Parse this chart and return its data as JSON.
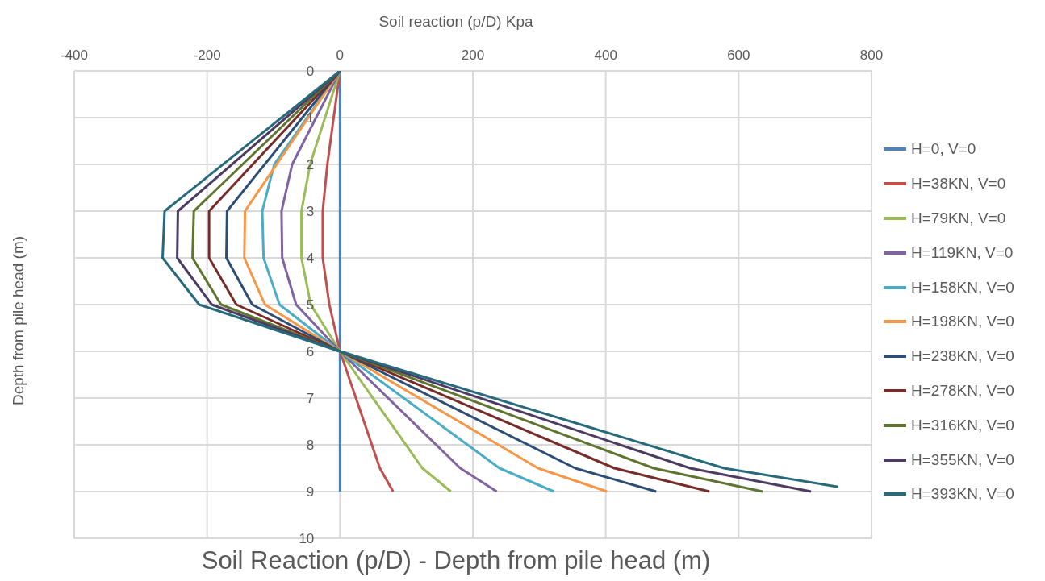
{
  "chart_data": {
    "type": "line",
    "title": "Soil Reaction (p/D) - Depth from pile head (m)",
    "xlabel": "Soil reaction (p/D) Kpa",
    "ylabel": "Depth from pile head (m)",
    "xlim": [
      -400,
      800
    ],
    "xticks": [
      -400,
      -200,
      0,
      200,
      400,
      600,
      800
    ],
    "ylim": [
      10,
      0
    ],
    "yticks": [
      0,
      1,
      2,
      3,
      4,
      5,
      6,
      7,
      8,
      9,
      10
    ],
    "grid": true,
    "legend": "right",
    "marker": "none",
    "line_style": "solid",
    "series": [
      {
        "name": "H=0, V=0",
        "color": "#4f81bd",
        "x": [
          0,
          0,
          0,
          0,
          0,
          0,
          0,
          0,
          0,
          0
        ],
        "values": [
          0,
          1,
          2,
          3,
          4,
          5,
          6,
          7,
          8,
          9
        ]
      },
      {
        "name": "H=38KN, V=0",
        "color": "#c0504d",
        "x": [
          0,
          -19,
          -26,
          -26,
          -16,
          0,
          60,
          80
        ],
        "values": [
          0,
          2,
          3,
          4,
          5,
          6,
          8.5,
          9
        ]
      },
      {
        "name": "H=79KN, V=0",
        "color": "#9bbb59",
        "x": [
          0,
          -45,
          -58,
          -58,
          -44,
          0,
          124,
          167
        ],
        "values": [
          0,
          2,
          3,
          4,
          5,
          6,
          8.5,
          9
        ]
      },
      {
        "name": "H=119KN, V=0",
        "color": "#8064a2",
        "x": [
          0,
          -72,
          -88,
          -87,
          -66,
          0,
          181,
          236
        ],
        "values": [
          0,
          2,
          3,
          4,
          5,
          6,
          8.5,
          9
        ]
      },
      {
        "name": "H=158KN, V=0",
        "color": "#4bacc6",
        "x": [
          0,
          -99,
          -117,
          -115,
          -91,
          0,
          240,
          322
        ],
        "values": [
          0,
          2,
          3,
          4,
          5,
          6,
          8.5,
          9
        ]
      },
      {
        "name": "H=198KN, V=0",
        "color": "#f79646",
        "x": [
          0,
          -143,
          -144,
          -113,
          0,
          298,
          402
        ],
        "values": [
          0,
          3,
          4,
          5,
          6,
          8.5,
          9
        ]
      },
      {
        "name": "H=238KN, V=0",
        "color": "#2c4d75",
        "x": [
          0,
          -170,
          -171,
          -132,
          0,
          354,
          476
        ],
        "values": [
          0,
          3,
          4,
          5,
          6,
          8.5,
          9
        ]
      },
      {
        "name": "H=278KN, V=0",
        "color": "#772c2a",
        "x": [
          0,
          -197,
          -197,
          -156,
          0,
          413,
          556
        ],
        "values": [
          0,
          3,
          4,
          5,
          6,
          8.5,
          9
        ]
      },
      {
        "name": "H=316KN, V=0",
        "color": "#5f7530",
        "x": [
          0,
          -220,
          -222,
          -179,
          0,
          472,
          636
        ],
        "values": [
          0,
          3,
          4,
          5,
          6,
          8.5,
          9
        ]
      },
      {
        "name": "H=355KN, V=0",
        "color": "#4d3b62",
        "x": [
          0,
          -244,
          -245,
          -193,
          0,
          527,
          709
        ],
        "values": [
          0,
          3,
          4,
          5,
          6,
          8.5,
          9
        ]
      },
      {
        "name": "H=393KN, V=0",
        "color": "#276a7c",
        "x": [
          0,
          -264,
          -267,
          -212,
          0,
          578,
          750
        ],
        "values": [
          0,
          3,
          4,
          5,
          6,
          8.5,
          8.9
        ]
      }
    ]
  }
}
